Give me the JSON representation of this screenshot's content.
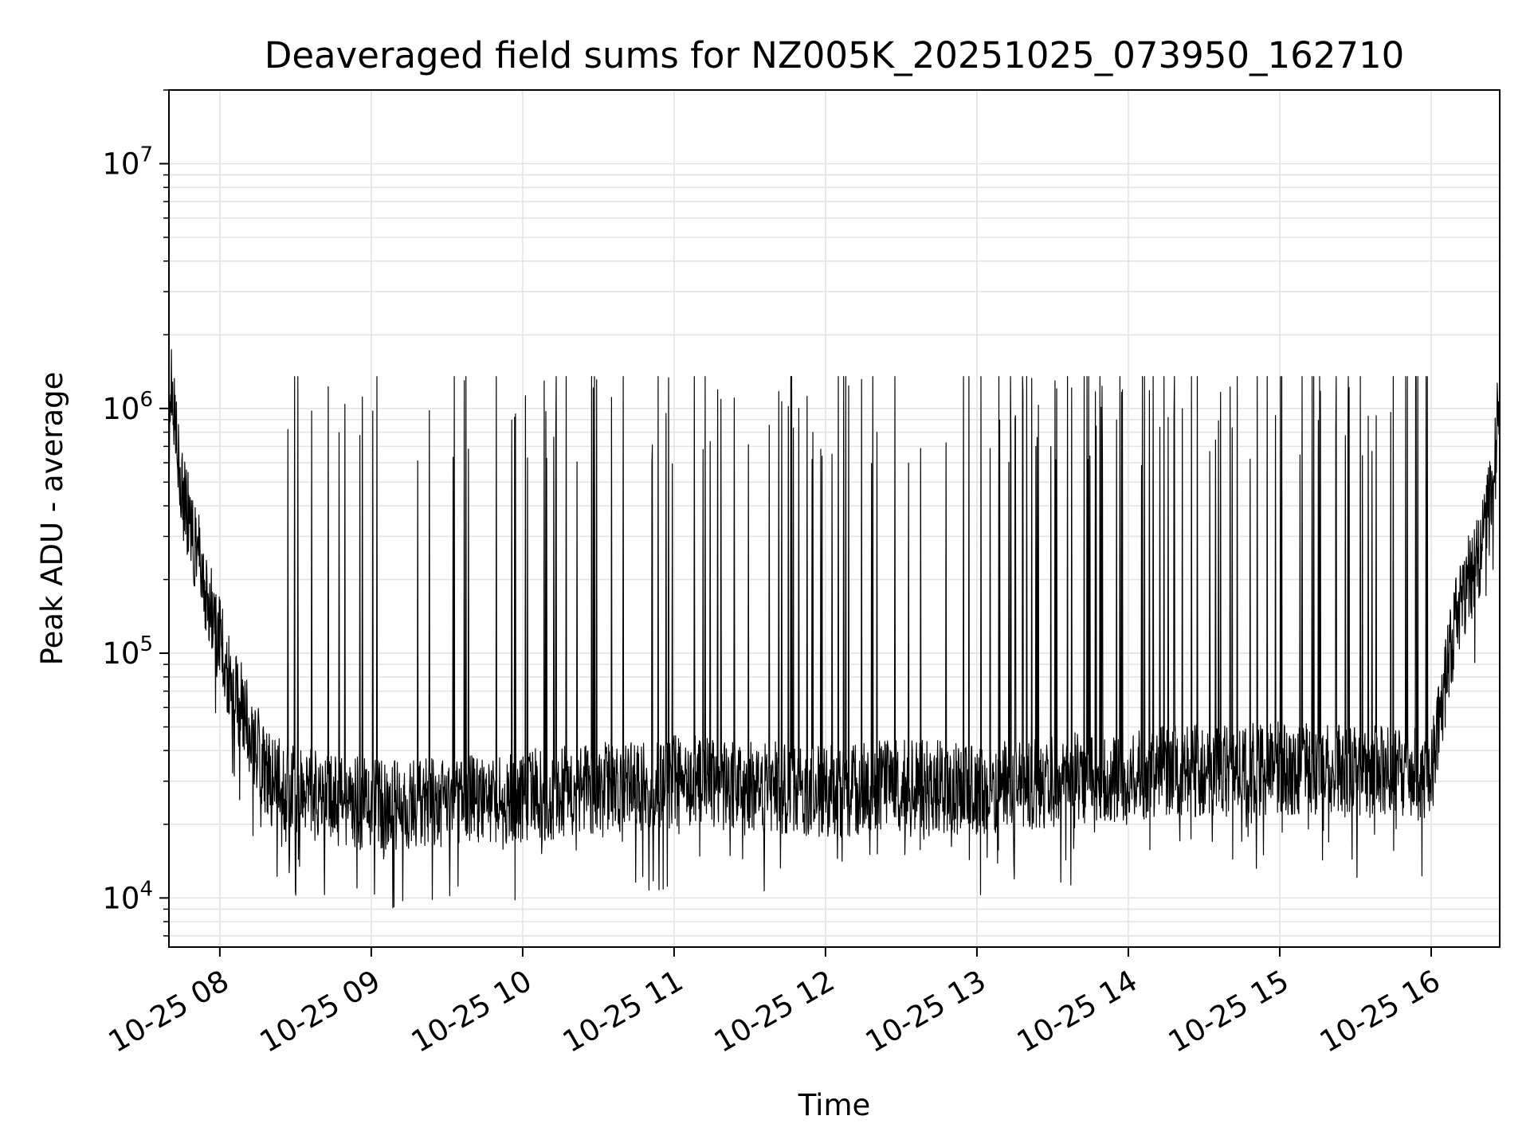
{
  "chart_data": {
    "type": "line",
    "title": "Deaveraged field sums for NZ005K_20251025_073950_162710",
    "xlabel": "Time",
    "ylabel": "Peak ADU - average",
    "yscale": "log",
    "ylim": [
      6300,
      20000000
    ],
    "xlim": [
      "2025-10-25 07:39:50",
      "2025-10-25 16:27:10"
    ],
    "grid": true,
    "line_color": "#000000",
    "x_ticks": [
      "10-25 08",
      "10-25 09",
      "10-25 10",
      "10-25 11",
      "10-25 12",
      "10-25 13",
      "10-25 14",
      "10-25 15",
      "10-25 16"
    ],
    "y_ticks": [
      {
        "base": "10",
        "exp": "4",
        "value": 10000
      },
      {
        "base": "10",
        "exp": "5",
        "value": 100000
      },
      {
        "base": "10",
        "exp": "6",
        "value": 1000000
      },
      {
        "base": "10",
        "exp": "7",
        "value": 10000000
      }
    ],
    "series": [
      {
        "x": [
          "2025-10-25 07:40",
          "2025-10-25 07:45",
          "2025-10-25 07:50",
          "2025-10-25 07:55",
          "2025-10-25 08:00",
          "2025-10-25 08:05",
          "2025-10-25 08:10",
          "2025-10-25 08:15",
          "2025-10-25 08:20",
          "2025-10-25 08:30",
          "2025-10-25 08:45",
          "2025-10-25 09:00",
          "2025-10-25 09:30",
          "2025-10-25 10:00",
          "2025-10-25 10:30",
          "2025-10-25 11:00",
          "2025-10-25 11:30",
          "2025-10-25 12:00",
          "2025-10-25 12:30",
          "2025-10-25 13:00",
          "2025-10-25 13:30",
          "2025-10-25 14:00",
          "2025-10-25 14:30",
          "2025-10-25 15:00",
          "2025-10-25 15:30",
          "2025-10-25 16:00",
          "2025-10-25 16:05",
          "2025-10-25 16:10",
          "2025-10-25 16:15",
          "2025-10-25 16:20",
          "2025-10-25 16:25",
          "2025-10-25 16:27"
        ],
        "y": [
          1400000,
          450000,
          280000,
          180000,
          110000,
          75000,
          55000,
          40000,
          30000,
          27000,
          25000,
          24000,
          25000,
          26000,
          28000,
          30000,
          29000,
          27000,
          29000,
          28000,
          30000,
          32000,
          33000,
          34000,
          33000,
          32000,
          70000,
          140000,
          200000,
          260000,
          500000,
          1300000
        ],
        "spikes": {
          "count_per_hour": [
            14,
            16,
            19,
            22,
            24,
            27,
            30,
            32,
            30
          ],
          "peak_typical": 900000,
          "peak_max": 1350000
        }
      }
    ]
  }
}
